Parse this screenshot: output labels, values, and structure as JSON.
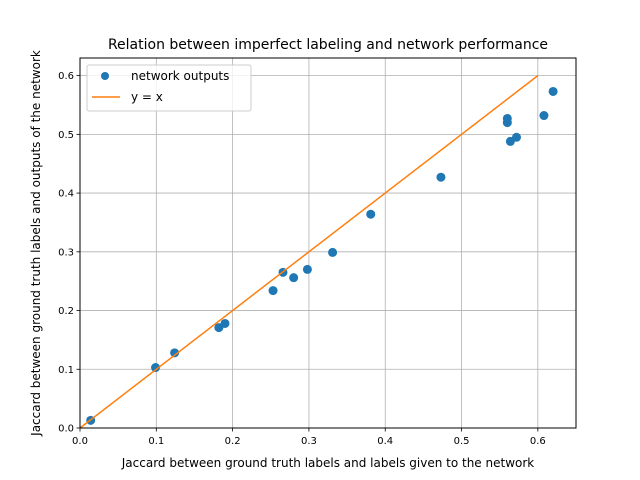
{
  "chart_data": {
    "type": "scatter",
    "title": "Relation between imperfect labeling and network performance",
    "xlabel": "Jaccard between ground truth labels and labels given to the network",
    "ylabel": "Jaccard between ground truth labels and outputs of the network",
    "xlim": [
      0.0,
      0.65
    ],
    "ylim": [
      0.0,
      0.63
    ],
    "xticks": [
      0.0,
      0.1,
      0.2,
      0.3,
      0.4,
      0.5,
      0.6
    ],
    "yticks": [
      0.0,
      0.1,
      0.2,
      0.3,
      0.4,
      0.5,
      0.6
    ],
    "xtick_labels": [
      "0.0",
      "0.1",
      "0.2",
      "0.3",
      "0.4",
      "0.5",
      "0.6"
    ],
    "ytick_labels": [
      "0.0",
      "0.1",
      "0.2",
      "0.3",
      "0.4",
      "0.5",
      "0.6"
    ],
    "grid": true,
    "legend_position": "top-left",
    "series": [
      {
        "name": "network outputs",
        "kind": "scatter",
        "color": "#1f77b4",
        "points": [
          [
            0.014,
            0.013
          ],
          [
            0.099,
            0.103
          ],
          [
            0.124,
            0.128
          ],
          [
            0.182,
            0.171
          ],
          [
            0.19,
            0.178
          ],
          [
            0.253,
            0.234
          ],
          [
            0.266,
            0.265
          ],
          [
            0.28,
            0.256
          ],
          [
            0.298,
            0.27
          ],
          [
            0.331,
            0.299
          ],
          [
            0.381,
            0.364
          ],
          [
            0.473,
            0.427
          ],
          [
            0.56,
            0.527
          ],
          [
            0.56,
            0.52
          ],
          [
            0.564,
            0.488
          ],
          [
            0.572,
            0.495
          ],
          [
            0.608,
            0.532
          ],
          [
            0.62,
            0.573
          ]
        ]
      },
      {
        "name": "y = x",
        "kind": "line",
        "color": "#ff7f0e",
        "points": [
          [
            0.0,
            0.0
          ],
          [
            0.6,
            0.6
          ]
        ]
      }
    ]
  }
}
